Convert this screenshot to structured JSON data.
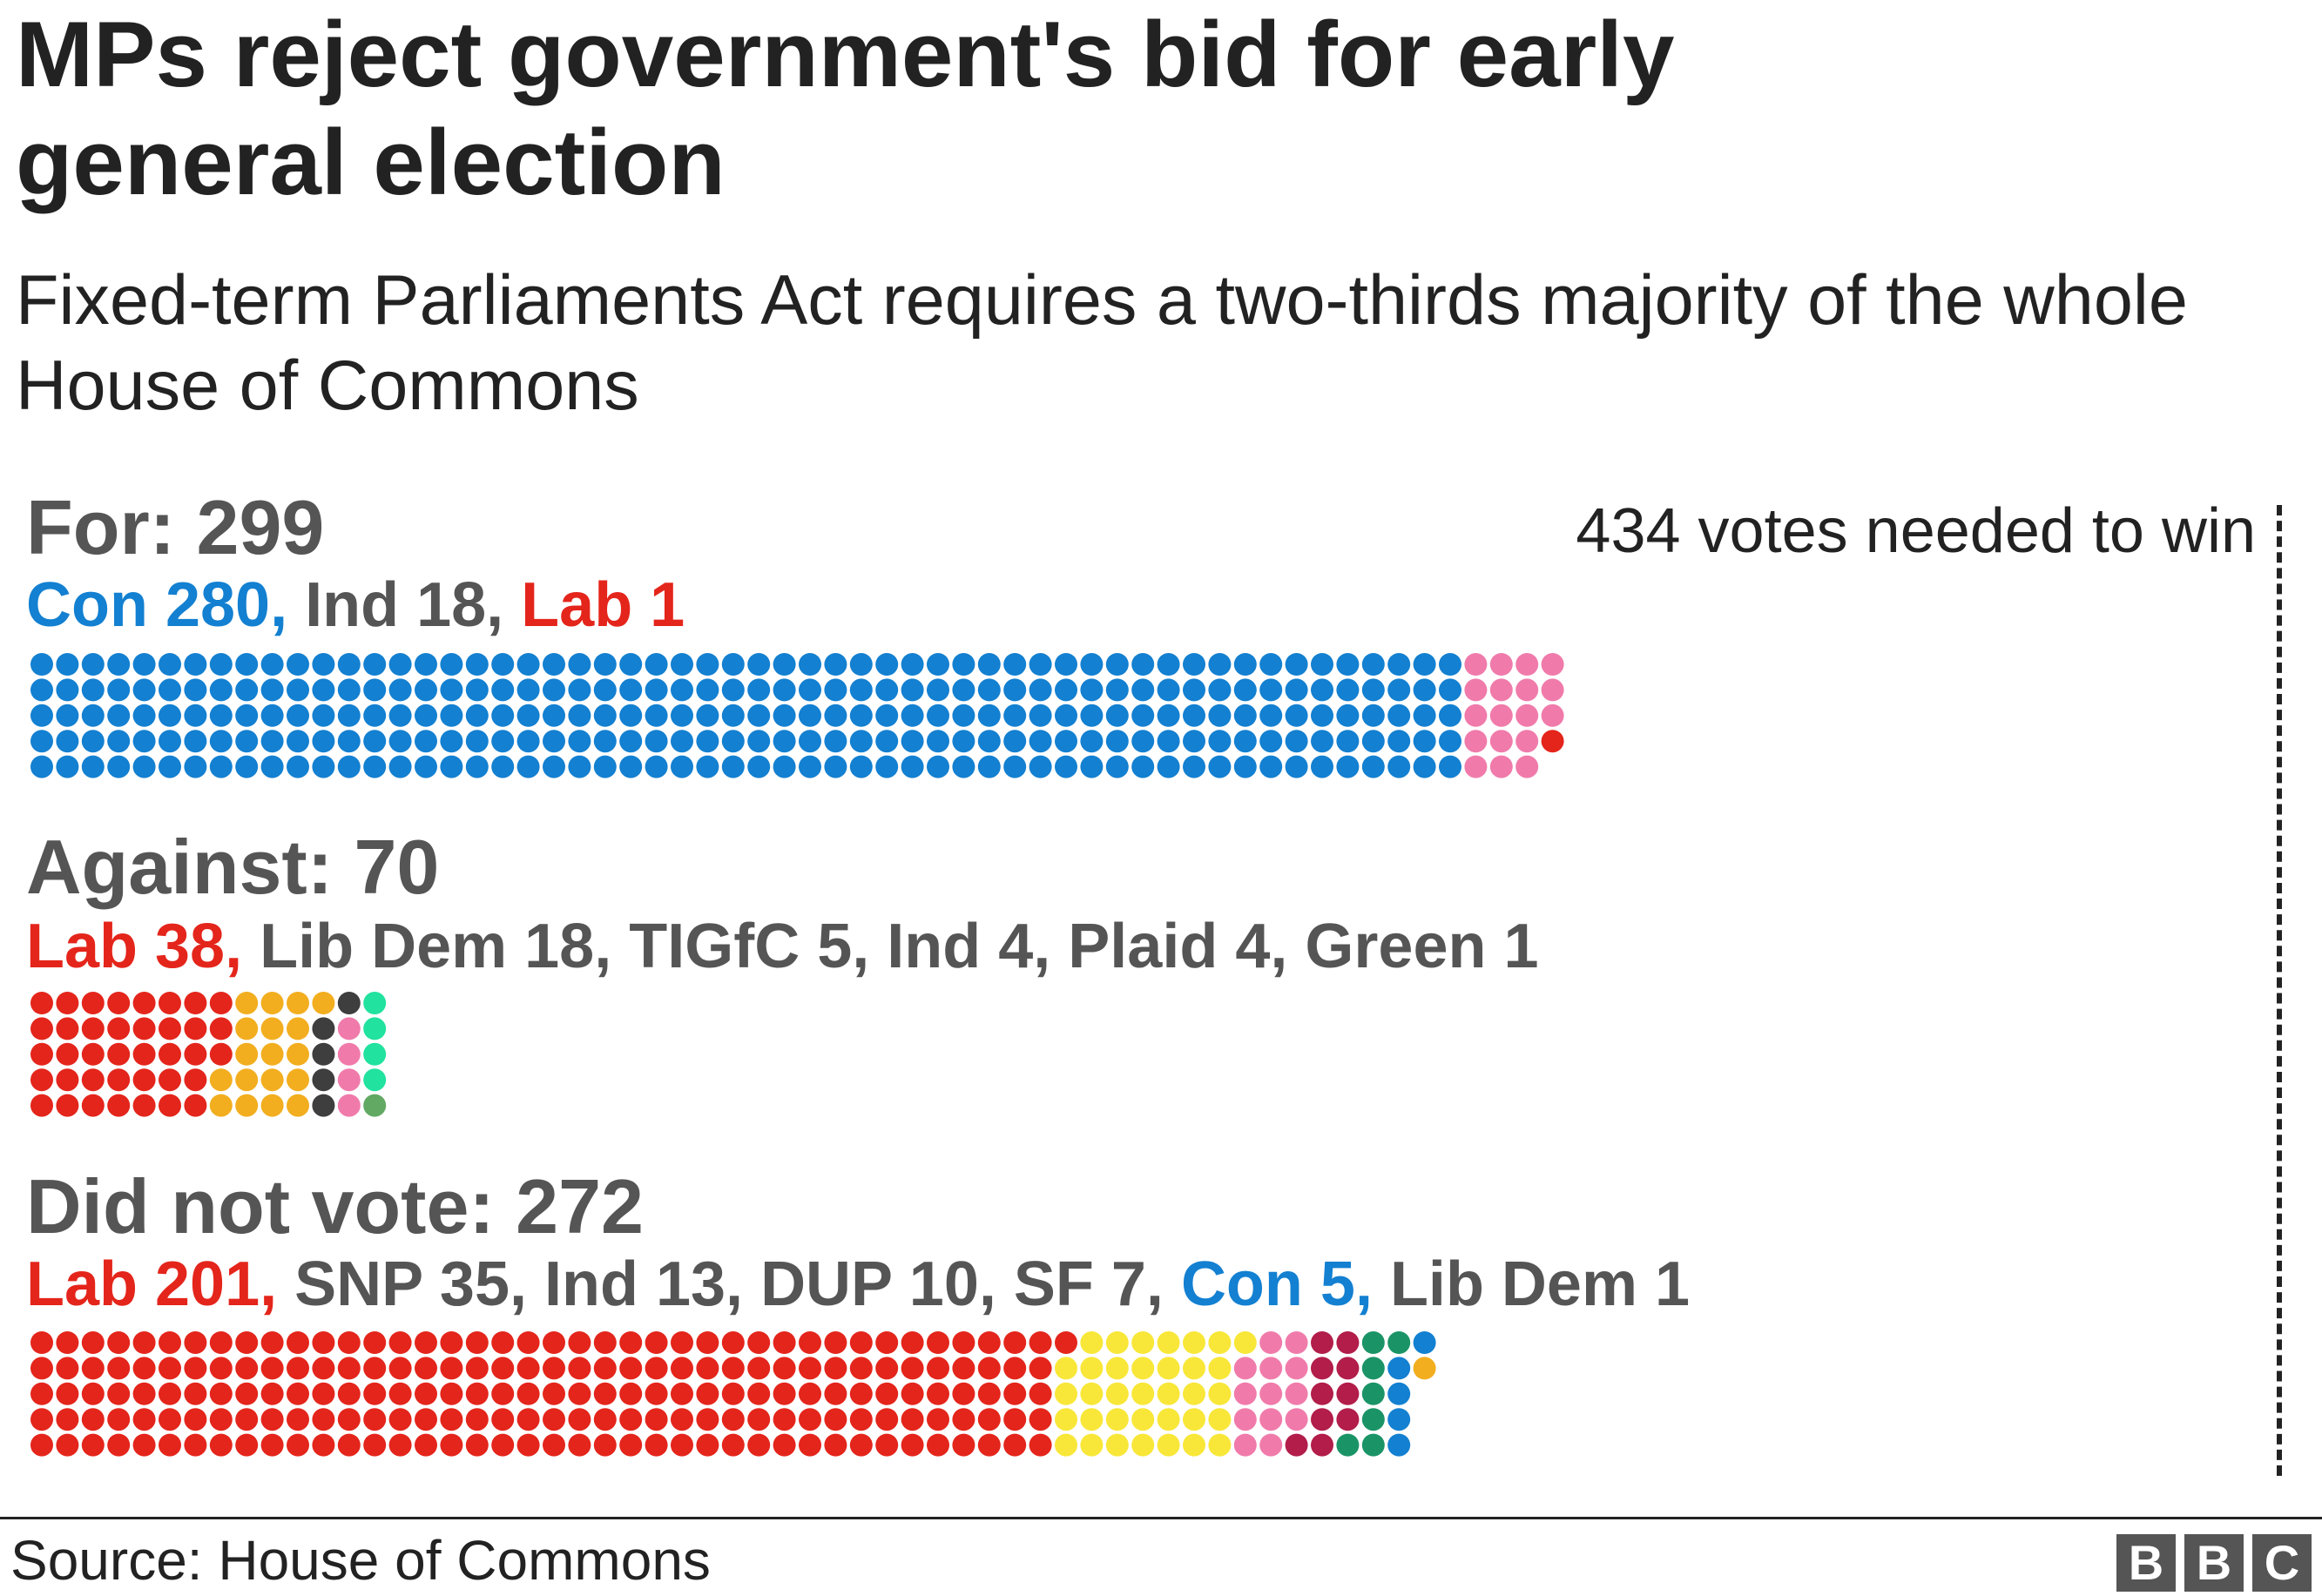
{
  "chart_data": {
    "type": "waffle",
    "title": "MPs reject government's bid for early general election",
    "subtitle": "Fixed-term Parliaments Act requires a two-thirds majority of the whole House of Commons",
    "threshold": {
      "value": 434,
      "label": "434 votes needed to win"
    },
    "groups": [
      {
        "key": "for",
        "heading": "For: 299",
        "total": 299,
        "parties": [
          {
            "name": "Con",
            "count": 280,
            "label": "Con 280",
            "color": "#1380D1",
            "label_color": "#1380D1"
          },
          {
            "name": "Ind",
            "count": 18,
            "label": "Ind 18",
            "color": "#F07BAB",
            "label_color": "#555555"
          },
          {
            "name": "Lab",
            "count": 1,
            "label": "Lab 1",
            "color": "#E4251B",
            "label_color": "#E4251B"
          }
        ]
      },
      {
        "key": "against",
        "heading": "Against: 70",
        "total": 70,
        "parties": [
          {
            "name": "Lab",
            "count": 38,
            "label": "Lab 38",
            "color": "#E4251B",
            "label_color": "#E4251B"
          },
          {
            "name": "Lib Dem",
            "count": 18,
            "label": "Lib Dem 18",
            "color": "#F2AE1F",
            "label_color": "#555555"
          },
          {
            "name": "TIGfC",
            "count": 5,
            "label": "TIGfC 5",
            "color": "#3E3E3E",
            "label_color": "#555555"
          },
          {
            "name": "Ind",
            "count": 4,
            "label": "Ind 4",
            "color": "#F07BAB",
            "label_color": "#555555"
          },
          {
            "name": "Plaid",
            "count": 4,
            "label": "Plaid 4",
            "color": "#21E29E",
            "label_color": "#555555"
          },
          {
            "name": "Green",
            "count": 1,
            "label": "Green 1",
            "color": "#62A964",
            "label_color": "#555555"
          }
        ]
      },
      {
        "key": "did_not_vote",
        "heading": "Did not vote: 272",
        "total": 272,
        "parties": [
          {
            "name": "Lab",
            "count": 201,
            "label": "Lab 201",
            "color": "#E4251B",
            "label_color": "#E4251B"
          },
          {
            "name": "SNP",
            "count": 35,
            "label": "SNP 35",
            "color": "#F8E738",
            "label_color": "#555555"
          },
          {
            "name": "Ind",
            "count": 13,
            "label": "Ind 13",
            "color": "#F07BAB",
            "label_color": "#555555"
          },
          {
            "name": "DUP",
            "count": 10,
            "label": "DUP 10",
            "color": "#B21D4A",
            "label_color": "#555555"
          },
          {
            "name": "SF",
            "count": 7,
            "label": "SF 7",
            "color": "#1A9467",
            "label_color": "#555555"
          },
          {
            "name": "Con",
            "count": 5,
            "label": "Con 5",
            "color": "#1380D1",
            "label_color": "#1380D1"
          },
          {
            "name": "Lib Dem",
            "count": 1,
            "label": "Lib Dem 1",
            "color": "#F2AE1F",
            "label_color": "#555555"
          }
        ]
      }
    ]
  },
  "footer": {
    "source": "Source: House of Commons",
    "logo_letters": [
      "B",
      "B",
      "C"
    ]
  }
}
